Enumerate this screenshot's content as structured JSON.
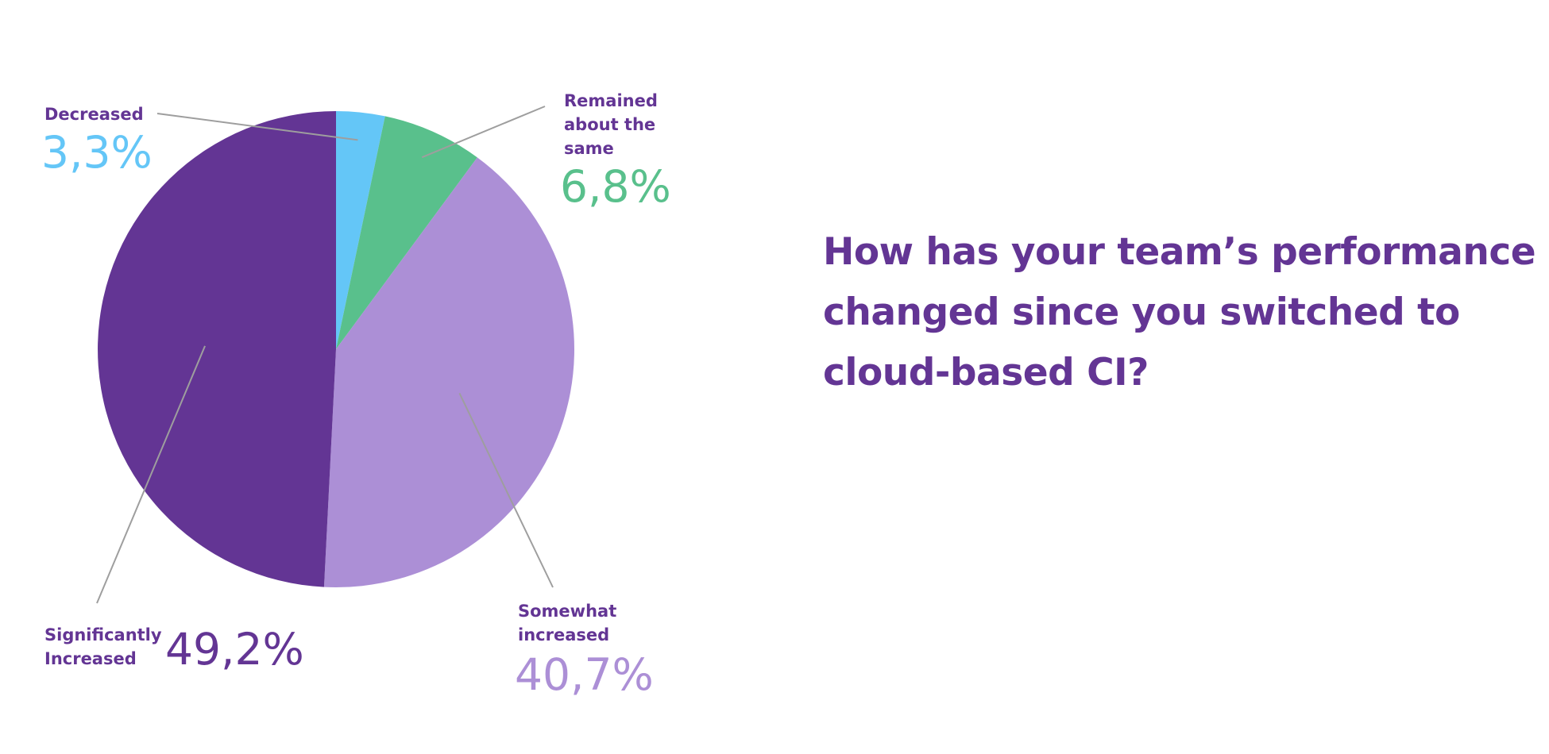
{
  "chart_data": {
    "type": "pie",
    "title": "How has your team’s performance changed since you switched to cloud-based CI?",
    "title_lines": [
      "How has your team’s performance",
      "changed since you switched to",
      "cloud-based CI?"
    ],
    "slices": [
      {
        "key": "decreased",
        "label": "Decreased",
        "display": "3,3%",
        "value": 3.3,
        "color": "#64c6f7"
      },
      {
        "key": "remained",
        "label": "Remained\nabout the\nsame",
        "display": "6,8%",
        "value": 6.8,
        "color": "#59c08c"
      },
      {
        "key": "somewhat",
        "label": "Somewhat\nincreased",
        "display": "40,7%",
        "value": 40.7,
        "color": "#ac8fd6"
      },
      {
        "key": "significantly",
        "label": "Significantly\nIncreased",
        "display": "49,2%",
        "value": 49.2,
        "color": "#633594"
      }
    ],
    "start_angle": "12 o'clock",
    "direction": "clockwise",
    "leader_line_color": "#9e9e9e",
    "text_color": "#633594"
  }
}
